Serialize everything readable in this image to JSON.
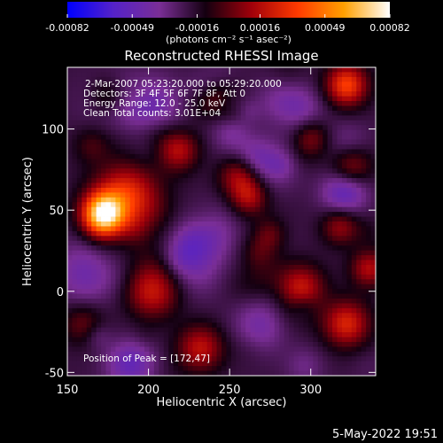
{
  "chart_data": {
    "type": "heatmap",
    "title": "Reconstructed RHESSI Image",
    "xlabel": "Heliocentric X (arcsec)",
    "ylabel": "Heliocentric Y (arcsec)",
    "xlim": [
      150,
      340
    ],
    "ylim": [
      -52,
      138
    ],
    "x_ticks": [
      150,
      200,
      250,
      300
    ],
    "x_tick_labels": [
      "150",
      "200",
      "250",
      "300"
    ],
    "y_ticks": [
      -50,
      0,
      50,
      100
    ],
    "y_tick_labels": [
      "-50",
      "0",
      "50",
      "100"
    ],
    "colorbar": {
      "min": -0.00082,
      "max": 0.00082,
      "ticks": [
        -0.00082,
        -0.00049,
        -0.00016,
        0.00016,
        0.00049,
        0.00082
      ],
      "tick_labels": [
        "-0.00082",
        "-0.00049",
        "-0.00016",
        "0.00016",
        "0.00049",
        "0.00082"
      ],
      "unit_label": "(photons cm⁻² s⁻¹ asec⁻²)",
      "colors": [
        "#0000ff",
        "#5522c8",
        "#7a2e96",
        "#140010",
        "#a0000a",
        "#ff3a00",
        "#ffa000",
        "#ffffff"
      ]
    },
    "annotations": [
      "2-Mar-2007 05:23:20.000 to 05:29:20.000",
      "Detectors: 3F 4F 5F 6F 7F 8F, Att 0",
      "Energy Range: 12.0 - 25.0 keV",
      "Clean     Total counts: 3.01E+04"
    ],
    "peak_label": "Position of Peak = [172,47]",
    "peak": [
      172,
      47
    ],
    "hotspots": [
      {
        "x": 172,
        "y": 47,
        "amp": 0.00082,
        "sigma": 9
      },
      {
        "x": 187,
        "y": 60,
        "amp": 0.00045,
        "sigma": 14
      },
      {
        "x": 218,
        "y": 87,
        "amp": 0.00038,
        "sigma": 9
      },
      {
        "x": 256,
        "y": 72,
        "amp": 0.0004,
        "sigma": 9
      },
      {
        "x": 262,
        "y": 58,
        "amp": 0.00032,
        "sigma": 8
      },
      {
        "x": 322,
        "y": 127,
        "amp": 0.00055,
        "sigma": 9
      },
      {
        "x": 325,
        "y": 77,
        "amp": 0.00035,
        "sigma": 9
      },
      {
        "x": 318,
        "y": 40,
        "amp": 0.0003,
        "sigma": 8
      },
      {
        "x": 203,
        "y": 0,
        "amp": 0.00042,
        "sigma": 11
      },
      {
        "x": 232,
        "y": -35,
        "amp": 0.00038,
        "sigma": 10
      },
      {
        "x": 294,
        "y": 2,
        "amp": 0.0004,
        "sigma": 10
      },
      {
        "x": 322,
        "y": -20,
        "amp": 0.00045,
        "sigma": 10
      },
      {
        "x": 336,
        "y": 14,
        "amp": 0.00035,
        "sigma": 8
      },
      {
        "x": 175,
        "y": 120,
        "amp": 0.00022,
        "sigma": 8
      },
      {
        "x": 245,
        "y": 120,
        "amp": 0.00022,
        "sigma": 8
      },
      {
        "x": 160,
        "y": -20,
        "amp": 0.00022,
        "sigma": 9
      },
      {
        "x": 275,
        "y": 35,
        "amp": 0.0002,
        "sigma": 7
      },
      {
        "x": 300,
        "y": 95,
        "amp": 0.00028,
        "sigma": 8
      },
      {
        "x": 165,
        "y": 90,
        "amp": 0.00015,
        "sigma": 8
      }
    ],
    "coldspots": [
      {
        "x": 200,
        "y": 110,
        "amp": -0.0003,
        "sigma": 14
      },
      {
        "x": 290,
        "y": 110,
        "amp": -0.00028,
        "sigma": 12
      },
      {
        "x": 230,
        "y": 20,
        "amp": -0.00026,
        "sigma": 14
      },
      {
        "x": 270,
        "y": -20,
        "amp": -0.00024,
        "sigma": 12
      },
      {
        "x": 160,
        "y": 10,
        "amp": -0.00022,
        "sigma": 12
      },
      {
        "x": 190,
        "y": -45,
        "amp": -0.00022,
        "sigma": 10
      },
      {
        "x": 320,
        "y": 60,
        "amp": -0.0002,
        "sigma": 10
      },
      {
        "x": 250,
        "y": 100,
        "amp": -0.00018,
        "sigma": 8
      }
    ]
  },
  "footer": {
    "date": "5-May-2022 19:51"
  }
}
